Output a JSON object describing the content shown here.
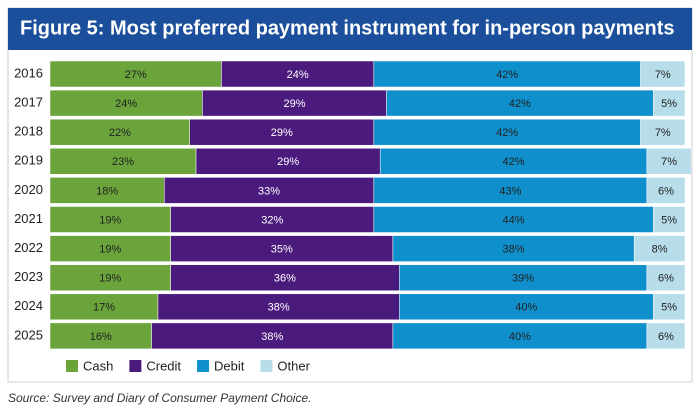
{
  "chart_data": {
    "type": "stacked_bar_horizontal",
    "title": "Figure 5: Most preferred payment instrument for in-person payments",
    "categories": [
      "2016",
      "2017",
      "2018",
      "2019",
      "2020",
      "2021",
      "2022",
      "2023",
      "2024",
      "2025"
    ],
    "series": [
      {
        "name": "Cash",
        "color": "#6aa43a",
        "values": [
          27,
          24,
          22,
          23,
          18,
          19,
          19,
          19,
          17,
          16
        ],
        "value_labels": [
          "27%",
          "24%",
          "22%",
          "23%",
          "18%",
          "19%",
          "19%",
          "19%",
          "17%",
          "16%"
        ]
      },
      {
        "name": "Credit",
        "color": "#4b1a7d",
        "values": [
          24,
          29,
          29,
          29,
          33,
          32,
          35,
          36,
          38,
          38
        ],
        "value_labels": [
          "24%",
          "29%",
          "29%",
          "29%",
          "33%",
          "32%",
          "35%",
          "36%",
          "38%",
          "38%"
        ]
      },
      {
        "name": "Debit",
        "color": "#0f8fcb",
        "values": [
          42,
          42,
          42,
          42,
          43,
          44,
          38,
          39,
          40,
          40
        ],
        "value_labels": [
          "42%",
          "42%",
          "42%",
          "42%",
          "43%",
          "44%",
          "38%",
          "39%",
          "40%",
          "40%"
        ]
      },
      {
        "name": "Other",
        "color": "#b7dcea",
        "values": [
          7,
          5,
          7,
          7,
          6,
          5,
          8,
          6,
          5,
          6
        ],
        "value_labels": [
          "7%",
          "5%",
          "7%",
          "7%",
          "6%",
          "5%",
          "8%",
          "6%",
          "5%",
          "6%"
        ]
      }
    ],
    "source": "Source: Survey and Diary of Consumer Payment Choice."
  }
}
